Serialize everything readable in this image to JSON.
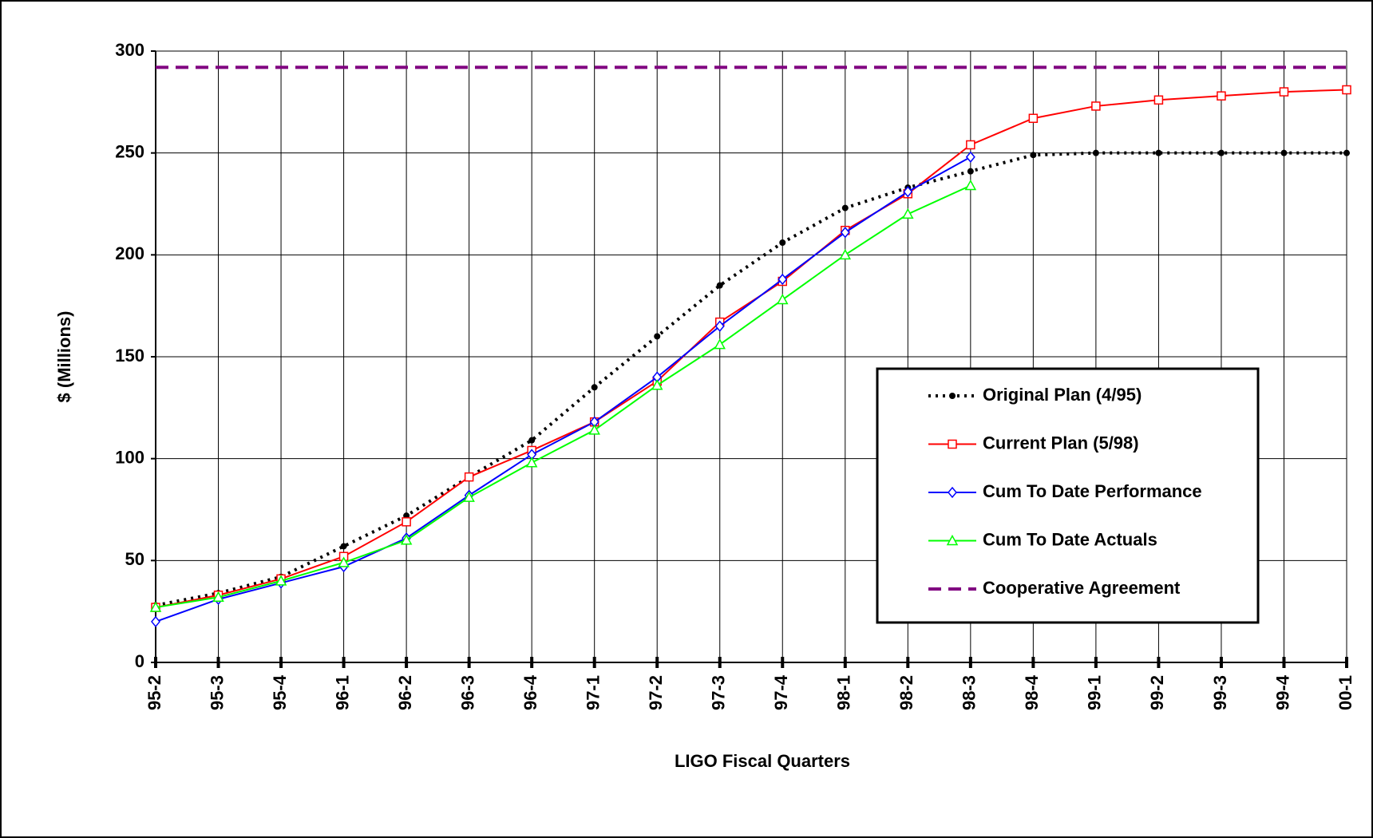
{
  "chart_data": {
    "type": "line",
    "xlabel": "LIGO Fiscal Quarters",
    "ylabel": "$ (Millions)",
    "categories": [
      "95-2",
      "95-3",
      "95-4",
      "96-1",
      "96-2",
      "96-3",
      "96-4",
      "97-1",
      "97-2",
      "97-3",
      "97-4",
      "98-1",
      "98-2",
      "98-3",
      "98-4",
      "99-1",
      "99-2",
      "99-3",
      "99-4",
      "00-1"
    ],
    "ylim": [
      0,
      300
    ],
    "yticks": [
      0,
      50,
      100,
      150,
      200,
      250,
      300
    ],
    "grid": true,
    "legend": "right",
    "series": [
      {
        "name": "Original Plan (4/95)",
        "color": "#000000",
        "dash": "dotted",
        "marker": "circle",
        "values": [
          28,
          34,
          42,
          57,
          72,
          91,
          109,
          135,
          160,
          185,
          206,
          223,
          233,
          241,
          249,
          250,
          250,
          250,
          250,
          250
        ]
      },
      {
        "name": "Current Plan (5/98)",
        "color": "#ff0000",
        "dash": "solid",
        "marker": "square",
        "values": [
          27,
          33,
          41,
          52,
          69,
          91,
          104,
          118,
          138,
          167,
          187,
          212,
          230,
          254,
          267,
          273,
          276,
          278,
          280,
          281
        ]
      },
      {
        "name": "Cum To Date Performance",
        "color": "#0000ff",
        "dash": "solid",
        "marker": "diamond",
        "values": [
          20,
          31,
          39,
          47,
          61,
          82,
          102,
          118,
          140,
          165,
          188,
          211,
          231,
          248,
          null,
          null,
          null,
          null,
          null,
          null
        ]
      },
      {
        "name": "Cum To Date Actuals",
        "color": "#00ff00",
        "dash": "solid",
        "marker": "triangle",
        "values": [
          27,
          32,
          40,
          49,
          60,
          81,
          98,
          114,
          136,
          156,
          178,
          200,
          220,
          234,
          null,
          null,
          null,
          null,
          null,
          null
        ]
      },
      {
        "name": "Cooperative Agreement",
        "color": "#800080",
        "dash": "dashed",
        "marker": "none",
        "values": [
          292,
          292,
          292,
          292,
          292,
          292,
          292,
          292,
          292,
          292,
          292,
          292,
          292,
          292,
          292,
          292,
          292,
          292,
          292,
          292
        ]
      }
    ]
  }
}
